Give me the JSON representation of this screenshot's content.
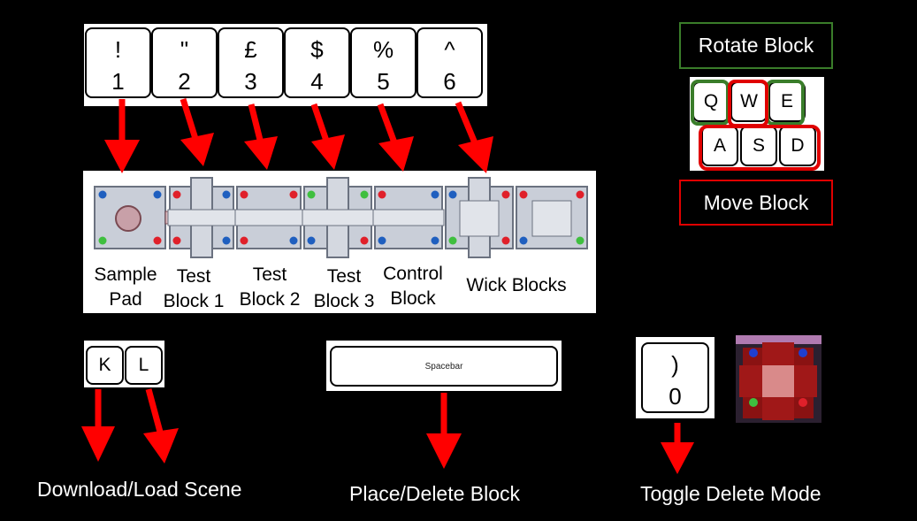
{
  "number_keys": [
    {
      "shift": "!",
      "main": "1"
    },
    {
      "shift": "\"",
      "main": "2"
    },
    {
      "shift": "£",
      "main": "3"
    },
    {
      "shift": "$",
      "main": "4"
    },
    {
      "shift": "%",
      "main": "5"
    },
    {
      "shift": "^",
      "main": "6"
    }
  ],
  "rotate_label": "Rotate Block",
  "move_label": "Move Block",
  "qwe_keys": [
    "Q",
    "W",
    "E"
  ],
  "asd_keys": [
    "A",
    "S",
    "D"
  ],
  "blocks": [
    {
      "line1": "Sample",
      "line2": "Pad"
    },
    {
      "line1": "Test",
      "line2": "Block 1"
    },
    {
      "line1": "Test",
      "line2": "Block 2"
    },
    {
      "line1": "Test",
      "line2": "Block 3"
    },
    {
      "line1": "Control",
      "line2": "Block"
    },
    {
      "line1": "Wick Blocks",
      "line2": ""
    }
  ],
  "kl_keys": [
    "K",
    "L"
  ],
  "spacebar_label": "Spacebar",
  "zero_key": {
    "shift": ")",
    "main": "0"
  },
  "captions": {
    "download": "Download/Load Scene",
    "place": "Place/Delete Block",
    "toggle": "Toggle Delete Mode"
  },
  "colors": {
    "arrow": "#ff0000",
    "rotate_border": "#3a7d2a",
    "move_border": "#e00000",
    "port_blue": "#1f5fbf",
    "port_red": "#e0202a",
    "port_green": "#3fbf3f"
  }
}
